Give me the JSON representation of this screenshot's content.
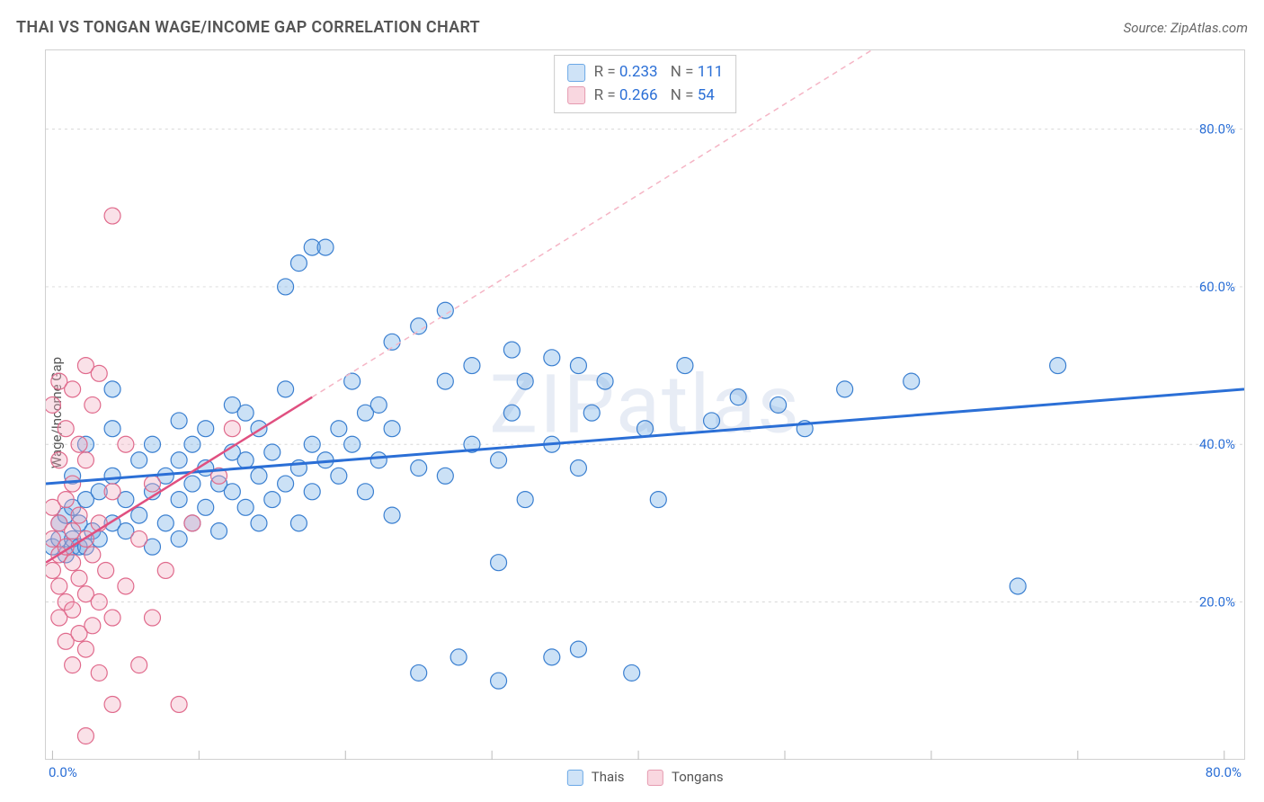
{
  "header": {
    "title": "THAI VS TONGAN WAGE/INCOME GAP CORRELATION CHART",
    "source": "Source: ZipAtlas.com"
  },
  "watermark": "ZIPatlas",
  "chart": {
    "type": "scatter",
    "ylabel": "Wage/Income Gap",
    "background_color": "#ffffff",
    "grid_color": "#d8d8d8",
    "axis_color": "#cccccc",
    "xlim": [
      0,
      90
    ],
    "ylim": [
      0,
      90
    ],
    "y_ticks": [
      20,
      40,
      60,
      80
    ],
    "y_tick_labels": [
      "20.0%",
      "40.0%",
      "60.0%",
      "80.0%"
    ],
    "x_ticks": [
      0.5,
      11.5,
      22.5,
      33.5,
      44.5,
      55.5,
      66.5,
      77.5,
      88.5
    ],
    "x_min_label": "0.0%",
    "x_max_label": "80.0%",
    "marker_radius": 9,
    "marker_stroke_width": 1.2,
    "marker_fill_opacity": 0.35,
    "series": [
      {
        "id": "thais",
        "label": "Thais",
        "color": "#6ba8e6",
        "stroke": "#3a7fd0",
        "r_value": "0.233",
        "n_value": "111",
        "trend": {
          "x1": 0,
          "y1": 35,
          "x2": 90,
          "y2": 47,
          "stroke": "#2b6fd6",
          "width": 3,
          "dash": "none"
        },
        "trend_ext": null,
        "points": [
          [
            0.5,
            27
          ],
          [
            1,
            28
          ],
          [
            1,
            30
          ],
          [
            1.5,
            26
          ],
          [
            1.5,
            31
          ],
          [
            2,
            27
          ],
          [
            2,
            28
          ],
          [
            2,
            32
          ],
          [
            2,
            36
          ],
          [
            2.5,
            27
          ],
          [
            2.5,
            30
          ],
          [
            3,
            27
          ],
          [
            3,
            33
          ],
          [
            3,
            40
          ],
          [
            3.5,
            29
          ],
          [
            4,
            34
          ],
          [
            4,
            28
          ],
          [
            5,
            30
          ],
          [
            5,
            36
          ],
          [
            5,
            42
          ],
          [
            5,
            47
          ],
          [
            6,
            29
          ],
          [
            6,
            33
          ],
          [
            7,
            31
          ],
          [
            7,
            38
          ],
          [
            8,
            27
          ],
          [
            8,
            34
          ],
          [
            8,
            40
          ],
          [
            9,
            30
          ],
          [
            9,
            36
          ],
          [
            10,
            28
          ],
          [
            10,
            33
          ],
          [
            10,
            38
          ],
          [
            10,
            43
          ],
          [
            11,
            30
          ],
          [
            11,
            35
          ],
          [
            11,
            40
          ],
          [
            12,
            32
          ],
          [
            12,
            37
          ],
          [
            12,
            42
          ],
          [
            13,
            29
          ],
          [
            13,
            35
          ],
          [
            14,
            34
          ],
          [
            14,
            39
          ],
          [
            14,
            45
          ],
          [
            15,
            32
          ],
          [
            15,
            38
          ],
          [
            15,
            44
          ],
          [
            16,
            30
          ],
          [
            16,
            36
          ],
          [
            16,
            42
          ],
          [
            17,
            33
          ],
          [
            17,
            39
          ],
          [
            18,
            35
          ],
          [
            18,
            47
          ],
          [
            18,
            60
          ],
          [
            19,
            30
          ],
          [
            19,
            37
          ],
          [
            19,
            63
          ],
          [
            20,
            34
          ],
          [
            20,
            40
          ],
          [
            20,
            65
          ],
          [
            21,
            38
          ],
          [
            21,
            65
          ],
          [
            22,
            36
          ],
          [
            22,
            42
          ],
          [
            23,
            40
          ],
          [
            23,
            48
          ],
          [
            24,
            34
          ],
          [
            24,
            44
          ],
          [
            25,
            38
          ],
          [
            25,
            45
          ],
          [
            26,
            31
          ],
          [
            26,
            42
          ],
          [
            26,
            53
          ],
          [
            28,
            37
          ],
          [
            28,
            55
          ],
          [
            28,
            11
          ],
          [
            30,
            36
          ],
          [
            30,
            48
          ],
          [
            30,
            57
          ],
          [
            31,
            13
          ],
          [
            32,
            40
          ],
          [
            32,
            50
          ],
          [
            34,
            10
          ],
          [
            34,
            38
          ],
          [
            34,
            25
          ],
          [
            35,
            44
          ],
          [
            35,
            52
          ],
          [
            36,
            33
          ],
          [
            36,
            48
          ],
          [
            38,
            13
          ],
          [
            38,
            40
          ],
          [
            38,
            51
          ],
          [
            40,
            14
          ],
          [
            40,
            37
          ],
          [
            40,
            50
          ],
          [
            41,
            44
          ],
          [
            42,
            48
          ],
          [
            44,
            11
          ],
          [
            45,
            42
          ],
          [
            46,
            33
          ],
          [
            48,
            50
          ],
          [
            50,
            43
          ],
          [
            52,
            46
          ],
          [
            55,
            45
          ],
          [
            57,
            42
          ],
          [
            60,
            47
          ],
          [
            65,
            48
          ],
          [
            73,
            22
          ],
          [
            76,
            50
          ]
        ]
      },
      {
        "id": "tongans",
        "label": "Tongans",
        "color": "#f2a8bc",
        "stroke": "#e06a8c",
        "r_value": "0.266",
        "n_value": "54",
        "trend": {
          "x1": 0,
          "y1": 25,
          "x2": 20,
          "y2": 46,
          "stroke": "#e05080",
          "width": 2.5,
          "dash": "none"
        },
        "trend_ext": {
          "x1": 20,
          "y1": 46,
          "x2": 62,
          "y2": 90,
          "stroke": "#f5b5c5",
          "width": 1.5,
          "dash": "6 5"
        },
        "points": [
          [
            0.5,
            24
          ],
          [
            0.5,
            28
          ],
          [
            0.5,
            32
          ],
          [
            0.5,
            45
          ],
          [
            1,
            18
          ],
          [
            1,
            22
          ],
          [
            1,
            26
          ],
          [
            1,
            30
          ],
          [
            1,
            38
          ],
          [
            1,
            48
          ],
          [
            1.5,
            15
          ],
          [
            1.5,
            20
          ],
          [
            1.5,
            27
          ],
          [
            1.5,
            33
          ],
          [
            1.5,
            42
          ],
          [
            2,
            12
          ],
          [
            2,
            19
          ],
          [
            2,
            25
          ],
          [
            2,
            29
          ],
          [
            2,
            35
          ],
          [
            2,
            47
          ],
          [
            2.5,
            16
          ],
          [
            2.5,
            23
          ],
          [
            2.5,
            31
          ],
          [
            2.5,
            40
          ],
          [
            3,
            3
          ],
          [
            3,
            14
          ],
          [
            3,
            21
          ],
          [
            3,
            28
          ],
          [
            3,
            38
          ],
          [
            3,
            50
          ],
          [
            3.5,
            17
          ],
          [
            3.5,
            26
          ],
          [
            3.5,
            45
          ],
          [
            4,
            11
          ],
          [
            4,
            20
          ],
          [
            4,
            30
          ],
          [
            4,
            49
          ],
          [
            4.5,
            24
          ],
          [
            5,
            7
          ],
          [
            5,
            18
          ],
          [
            5,
            34
          ],
          [
            5,
            69
          ],
          [
            6,
            22
          ],
          [
            6,
            40
          ],
          [
            7,
            12
          ],
          [
            7,
            28
          ],
          [
            8,
            18
          ],
          [
            8,
            35
          ],
          [
            9,
            24
          ],
          [
            10,
            7
          ],
          [
            11,
            30
          ],
          [
            13,
            36
          ],
          [
            14,
            42
          ]
        ]
      }
    ],
    "legend_bottom": [
      {
        "label": "Thais",
        "fill": "#cfe3f7",
        "stroke": "#6ba8e6"
      },
      {
        "label": "Tongans",
        "fill": "#f9d7e0",
        "stroke": "#e59ab0"
      }
    ]
  }
}
